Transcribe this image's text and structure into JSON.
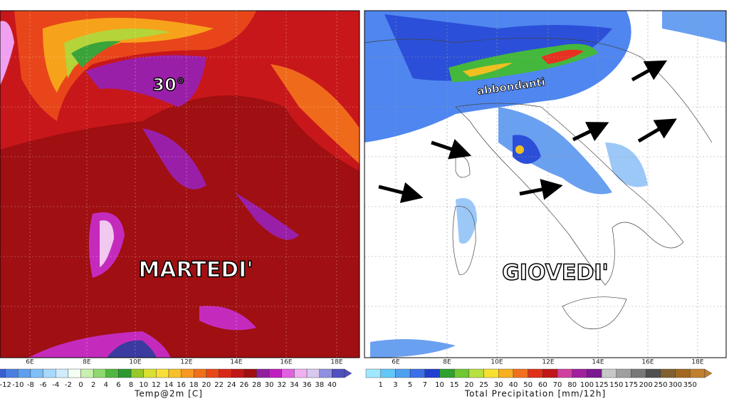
{
  "maps": [
    {
      "longitude_labels": [
        "6E",
        "8E",
        "10E",
        "12E",
        "14E",
        "16E",
        "18E"
      ],
      "annotations": [
        "30°",
        "MARTEDI'"
      ],
      "colorbar": {
        "labels": [
          "-12",
          "-10",
          "-8",
          "-6",
          "-4",
          "-2",
          "0",
          "2",
          "4",
          "6",
          "8",
          "10",
          "12",
          "14",
          "16",
          "18",
          "20",
          "22",
          "24",
          "26",
          "28",
          "30",
          "32",
          "34",
          "36",
          "38",
          "40"
        ],
        "title": "Temp@2m [C]"
      }
    },
    {
      "longitude_labels": [
        "6E",
        "8E",
        "10E",
        "12E",
        "14E",
        "16E",
        "18E"
      ],
      "annotations": [
        "abbondanti",
        "GIOVEDI'"
      ],
      "colorbar": {
        "labels": [
          "1",
          "3",
          "5",
          "7",
          "10",
          "15",
          "20",
          "25",
          "30",
          "40",
          "50",
          "60",
          "70",
          "80",
          "100",
          "125",
          "150",
          "175",
          "200",
          "250",
          "300",
          "350"
        ],
        "title": "Total Precipitation [mm/12h]"
      }
    }
  ]
}
